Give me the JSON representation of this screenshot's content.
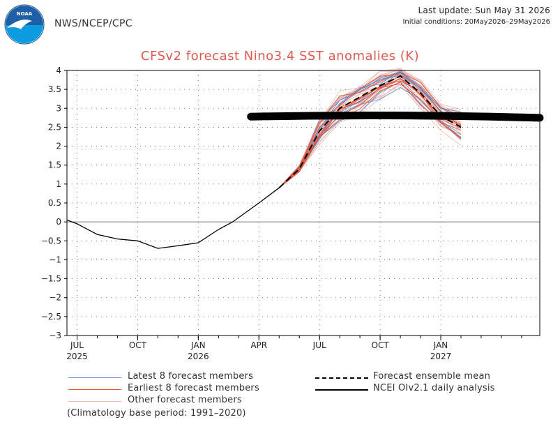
{
  "header": {
    "agency": "NWS/NCEP/CPC",
    "last_update": "Last update: Sun May 31 2026",
    "initial_conditions": "Initial conditions: 20May2026–29May2026",
    "logo_text": "NOAA",
    "logo_colors": {
      "top": "#1f5fa8",
      "bottom": "#0a9be0",
      "bird": "#ffffff"
    }
  },
  "footer": {
    "climatology": "(Climatology base period: 1991–2020)"
  },
  "chart_data": {
    "type": "line",
    "title": "CFSv2 forecast Nino3.4 SST anomalies (K)",
    "xlabel": "",
    "ylabel": "",
    "ylim": [
      -3,
      4
    ],
    "yticks": [
      -3,
      -2.5,
      -2,
      -1.5,
      -1,
      -0.5,
      0,
      0.5,
      1,
      1.5,
      2,
      2.5,
      3,
      3.5,
      4
    ],
    "ytick_labels": [
      "−3",
      "−2.5",
      "−2",
      "−1.5",
      "−1",
      "−0.5",
      "0",
      "0.5",
      "1",
      "1.5",
      "2",
      "2.5",
      "3",
      "3.5",
      "4"
    ],
    "x_month_index_range": [
      0.5,
      23.9
    ],
    "xticks": [
      {
        "month_index": 1,
        "label": "JUL",
        "year": "2025"
      },
      {
        "month_index": 4,
        "label": "OCT",
        "year": ""
      },
      {
        "month_index": 7,
        "label": "JAN",
        "year": "2026"
      },
      {
        "month_index": 10,
        "label": "APR",
        "year": ""
      },
      {
        "month_index": 13,
        "label": "JUL",
        "year": ""
      },
      {
        "month_index": 16,
        "label": "OCT",
        "year": ""
      },
      {
        "month_index": 19,
        "label": "JAN",
        "year": "2027"
      }
    ],
    "grid": "dotted",
    "zero_line": true,
    "analysis": {
      "name": "NCEI OIv2.1 daily analysis",
      "color": "#000000",
      "points": [
        [
          0.5,
          0.05
        ],
        [
          1,
          -0.05
        ],
        [
          2,
          -0.33
        ],
        [
          3,
          -0.45
        ],
        [
          4,
          -0.5
        ],
        [
          5,
          -0.7
        ],
        [
          6,
          -0.63
        ],
        [
          7,
          -0.55
        ],
        [
          8,
          -0.2
        ],
        [
          8.7,
          0.0
        ],
        [
          10,
          0.5
        ],
        [
          11,
          0.9
        ]
      ]
    },
    "ensemble_mean": {
      "name": "Forecast ensemble mean",
      "color": "#000000",
      "points": [
        [
          11,
          0.9
        ],
        [
          12,
          1.4
        ],
        [
          13,
          2.4
        ],
        [
          14,
          3.0
        ],
        [
          15,
          3.3
        ],
        [
          16,
          3.6
        ],
        [
          17,
          3.85
        ],
        [
          18,
          3.4
        ],
        [
          19,
          2.8
        ],
        [
          20,
          2.5
        ]
      ]
    },
    "member_groups": [
      {
        "name": "Latest 8 forecast members",
        "color": "#6a8fd0"
      },
      {
        "name": "Earliest 8 forecast members",
        "color": "#e2553a"
      },
      {
        "name": "Other forecast members",
        "color": "#e9b8b0"
      }
    ],
    "member_spread_points": [
      [
        11,
        0.0
      ],
      [
        12,
        0.1
      ],
      [
        13,
        0.35
      ],
      [
        14,
        0.45
      ],
      [
        15,
        0.5
      ],
      [
        16,
        0.4
      ],
      [
        17,
        0.3
      ],
      [
        18,
        0.4
      ],
      [
        19,
        0.4
      ],
      [
        20,
        0.45
      ]
    ],
    "overlay_annotation": {
      "type": "hand-drawn bar",
      "color": "#000000",
      "from": [
        9.6,
        2.78
      ],
      "to": [
        23.9,
        2.75
      ]
    }
  }
}
